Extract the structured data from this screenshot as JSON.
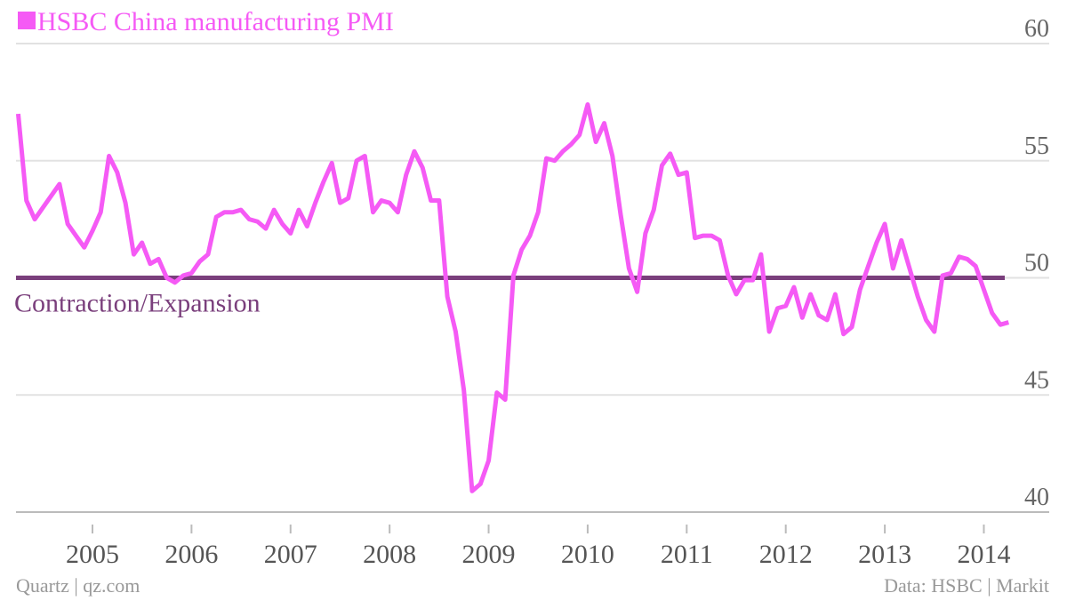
{
  "chart_data": {
    "type": "line",
    "x": [
      2004.25,
      2004.333,
      2004.417,
      2004.5,
      2004.583,
      2004.667,
      2004.75,
      2004.833,
      2004.917,
      2005.0,
      2005.083,
      2005.167,
      2005.25,
      2005.333,
      2005.417,
      2005.5,
      2005.583,
      2005.667,
      2005.75,
      2005.833,
      2005.917,
      2006.0,
      2006.083,
      2006.167,
      2006.25,
      2006.333,
      2006.417,
      2006.5,
      2006.583,
      2006.667,
      2006.75,
      2006.833,
      2006.917,
      2007.0,
      2007.083,
      2007.167,
      2007.25,
      2007.333,
      2007.417,
      2007.5,
      2007.583,
      2007.667,
      2007.75,
      2007.833,
      2007.917,
      2008.0,
      2008.083,
      2008.167,
      2008.25,
      2008.333,
      2008.417,
      2008.5,
      2008.583,
      2008.667,
      2008.75,
      2008.833,
      2008.917,
      2009.0,
      2009.083,
      2009.167,
      2009.25,
      2009.333,
      2009.417,
      2009.5,
      2009.583,
      2009.667,
      2009.75,
      2009.833,
      2009.917,
      2010.0,
      2010.083,
      2010.167,
      2010.25,
      2010.333,
      2010.417,
      2010.5,
      2010.583,
      2010.667,
      2010.75,
      2010.833,
      2010.917,
      2011.0,
      2011.083,
      2011.167,
      2011.25,
      2011.333,
      2011.417,
      2011.5,
      2011.583,
      2011.667,
      2011.75,
      2011.833,
      2011.917,
      2012.0,
      2012.083,
      2012.167,
      2012.25,
      2012.333,
      2012.417,
      2012.5,
      2012.583,
      2012.667,
      2012.75,
      2012.833,
      2012.917,
      2013.0,
      2013.083,
      2013.167,
      2013.25,
      2013.333,
      2013.417,
      2013.5,
      2013.583,
      2013.667,
      2013.75,
      2013.833,
      2013.917,
      2014.0,
      2014.083,
      2014.167,
      2014.25
    ],
    "series": [
      {
        "name": "HSBC China manufacturing PMI",
        "color": "#f55af5",
        "values": [
          57.0,
          53.3,
          52.5,
          53.0,
          53.5,
          54.0,
          52.3,
          51.8,
          51.3,
          52.0,
          52.8,
          55.2,
          54.5,
          53.2,
          51.0,
          51.5,
          50.6,
          50.8,
          50.0,
          49.8,
          50.1,
          50.2,
          50.7,
          51.0,
          52.6,
          52.8,
          52.8,
          52.9,
          52.5,
          52.4,
          52.1,
          52.9,
          52.3,
          51.9,
          52.9,
          52.2,
          53.2,
          54.1,
          54.9,
          53.2,
          53.4,
          55.0,
          55.2,
          52.8,
          53.3,
          53.2,
          52.8,
          54.4,
          55.4,
          54.7,
          53.3,
          53.3,
          49.2,
          47.7,
          45.2,
          40.9,
          41.2,
          42.2,
          45.1,
          44.8,
          50.1,
          51.2,
          51.8,
          52.8,
          55.1,
          55.0,
          55.4,
          55.7,
          56.1,
          57.4,
          55.8,
          56.6,
          55.2,
          52.7,
          50.4,
          49.4,
          51.9,
          52.9,
          54.8,
          55.3,
          54.4,
          54.5,
          51.7,
          51.8,
          51.8,
          51.6,
          50.1,
          49.3,
          49.9,
          49.9,
          51.0,
          47.7,
          48.7,
          48.8,
          49.6,
          48.3,
          49.3,
          48.4,
          48.2,
          49.3,
          47.6,
          47.9,
          49.5,
          50.5,
          51.5,
          52.3,
          50.4,
          51.6,
          50.4,
          49.2,
          48.2,
          47.7,
          50.1,
          50.2,
          50.9,
          50.8,
          50.5,
          49.5,
          48.5,
          48.0,
          48.1
        ]
      }
    ],
    "reference_line": {
      "value": 50,
      "label": "Contraction/Expansion",
      "color": "#7a3f7c"
    },
    "xlim": [
      2004.228,
      2014.66
    ],
    "xticks": [
      2005,
      2006,
      2007,
      2008,
      2009,
      2010,
      2011,
      2012,
      2013,
      2014
    ],
    "ylim": [
      40,
      60
    ],
    "yticks": [
      40,
      45,
      50,
      55,
      60
    ],
    "grid": true,
    "footer_left": "Quartz | qz.com",
    "footer_right": "Data: HSBC | Markit"
  }
}
